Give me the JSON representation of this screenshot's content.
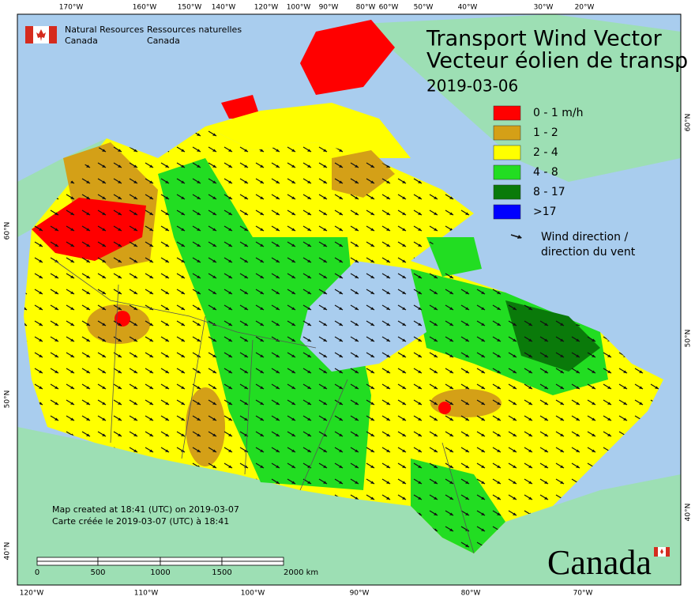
{
  "header": {
    "agency_en": [
      "Natural Resources",
      "Canada"
    ],
    "agency_fr": [
      "Ressources naturelles",
      "Canada"
    ]
  },
  "title": [
    "Transport Wind Vector",
    "Vecteur éolien de transp"
  ],
  "date": "2019-03-06",
  "legend": [
    {
      "label": "0 - 1 m/h",
      "color": "#ff0000"
    },
    {
      "label": "1 - 2",
      "color": "#d4a017"
    },
    {
      "label": "2 - 4",
      "color": "#ffff00"
    },
    {
      "label": "4 - 8",
      "color": "#22dd22"
    },
    {
      "label": "8 - 17",
      "color": "#0a7a0a"
    },
    {
      "label": ">17",
      "color": "#0000ff"
    }
  ],
  "legend_arrow": [
    "Wind direction /",
    "direction du vent"
  ],
  "credit": [
    "Map created at 18:41 (UTC) on 2019-03-07",
    "Carte créée le 2019-03-07 (UTC) à 18:41"
  ],
  "scale": [
    "0",
    "500",
    "1000",
    "1500",
    "2000 km"
  ],
  "wordmark": "Canada",
  "graticule": {
    "top": [
      "170°W",
      "160°W",
      "150°W",
      "140°W",
      "120°W",
      "100°W",
      "90°W",
      "80°W",
      "60°W",
      "50°W",
      "40°W",
      "30°W",
      "20°W"
    ],
    "bottom": [
      "120°W",
      "110°W",
      "100°W",
      "90°W",
      "80°W",
      "70°W"
    ],
    "left": [
      "60°N",
      "50°N",
      "40°N"
    ],
    "right": [
      "60°N",
      "50°N",
      "40°N"
    ]
  }
}
